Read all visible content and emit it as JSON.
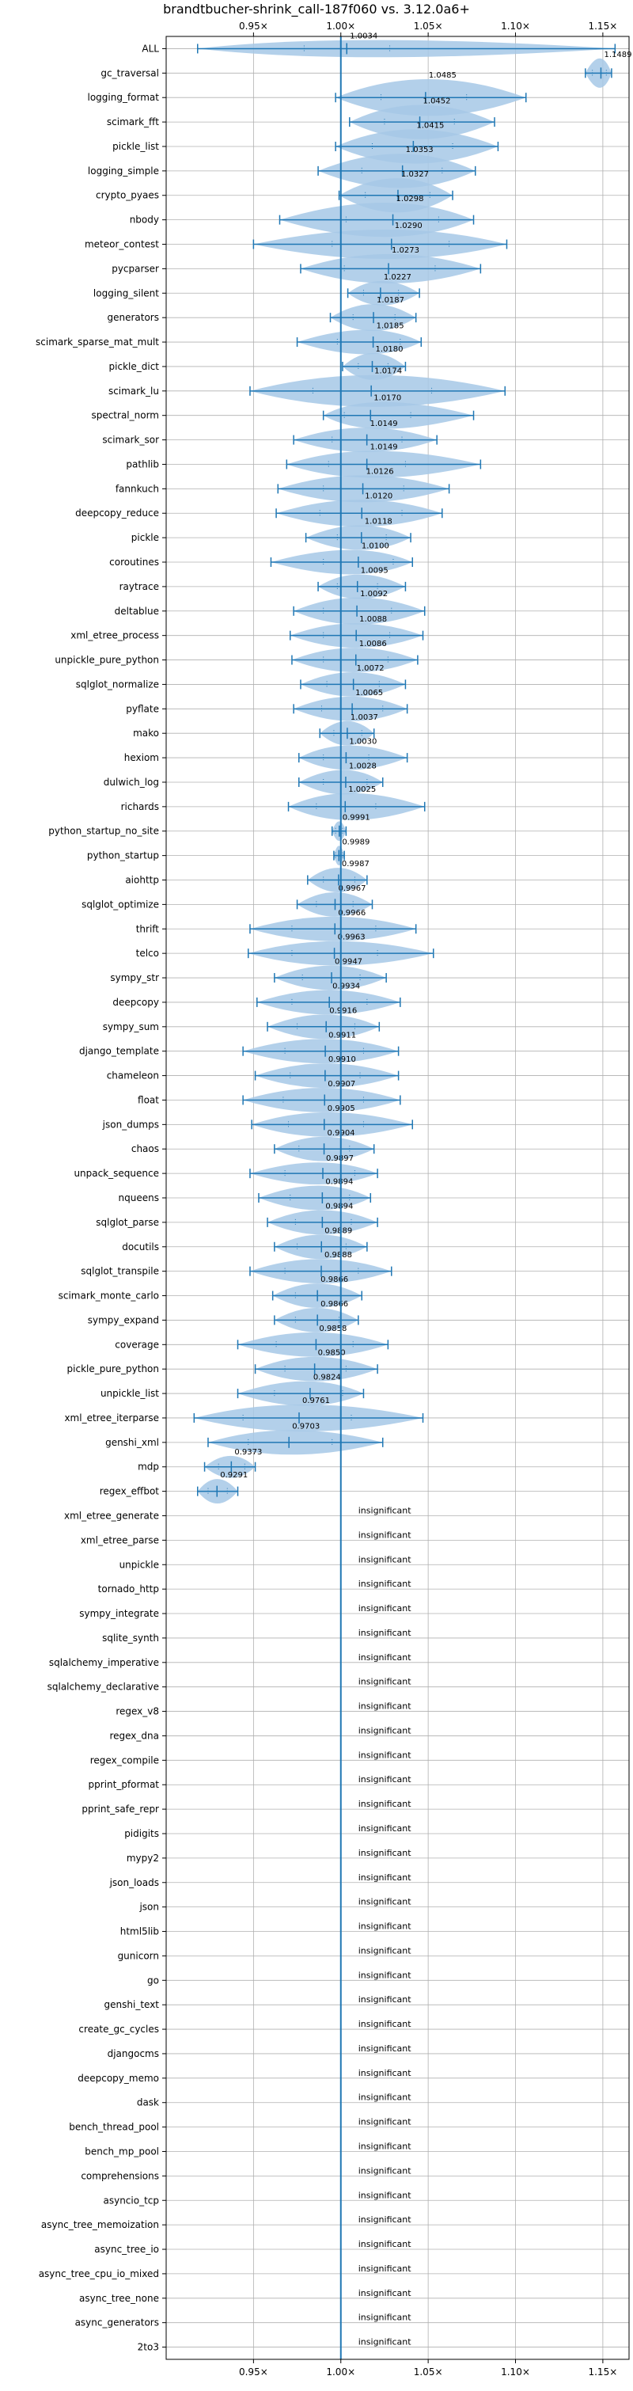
{
  "chart_data": {
    "type": "violin",
    "title": "brandtbucher-shrink_call-187f060 vs. 3.12.0a6+",
    "orientation": "horizontal",
    "xlim": [
      0.9,
      1.165
    ],
    "xticks": [
      0.95,
      1.0,
      1.05,
      1.1,
      1.15
    ],
    "xtick_labels": [
      "0.95×",
      "1.00×",
      "1.05×",
      "1.10×",
      "1.15×"
    ],
    "xticks_top_and_bottom": true,
    "grid": true,
    "reference_line": 1.0,
    "colors": {
      "violin": "#a6c8e6",
      "line": "#1f77b4",
      "grid": "#b0b0b0",
      "axis": "#000000"
    },
    "insignificant_label": "insignificant",
    "benchmarks": [
      {
        "name": "ALL",
        "mean": 1.0034,
        "min": 0.918,
        "max": 1.157,
        "q1": 0.979,
        "q3": 1.028,
        "w": 0.35
      },
      {
        "name": "gc_traversal",
        "mean": 1.1489,
        "min": 1.14,
        "max": 1.155,
        "q1": 1.144,
        "q3": 1.152,
        "w": 0.6
      },
      {
        "name": "logging_format",
        "mean": 1.0485,
        "min": 0.997,
        "max": 1.106,
        "q1": 1.023,
        "q3": 1.072,
        "w": 0.75
      },
      {
        "name": "scimark_fft",
        "mean": 1.0452,
        "min": 1.005,
        "max": 1.088,
        "q1": 1.025,
        "q3": 1.065,
        "w": 0.7
      },
      {
        "name": "pickle_list",
        "mean": 1.0415,
        "min": 0.997,
        "max": 1.09,
        "q1": 1.018,
        "q3": 1.064,
        "w": 0.7
      },
      {
        "name": "logging_simple",
        "mean": 1.0353,
        "min": 0.987,
        "max": 1.077,
        "q1": 1.012,
        "q3": 1.058,
        "w": 0.7
      },
      {
        "name": "crypto_pyaes",
        "mean": 1.0327,
        "min": 0.999,
        "max": 1.064,
        "q1": 1.014,
        "q3": 1.051,
        "w": 0.7
      },
      {
        "name": "nbody",
        "mean": 1.0298,
        "min": 0.965,
        "max": 1.076,
        "q1": 1.003,
        "q3": 1.056,
        "w": 0.7
      },
      {
        "name": "meteor_contest",
        "mean": 1.029,
        "min": 0.95,
        "max": 1.095,
        "q1": 0.995,
        "q3": 1.062,
        "w": 0.6
      },
      {
        "name": "pycparser",
        "mean": 1.0273,
        "min": 0.977,
        "max": 1.08,
        "q1": 1.002,
        "q3": 1.054,
        "w": 0.6
      },
      {
        "name": "logging_silent",
        "mean": 1.0227,
        "min": 1.004,
        "max": 1.045,
        "q1": 1.013,
        "q3": 1.033,
        "w": 0.5
      },
      {
        "name": "generators",
        "mean": 1.0187,
        "min": 0.994,
        "max": 1.043,
        "q1": 1.007,
        "q3": 1.031,
        "w": 0.55
      },
      {
        "name": "scimark_sparse_mat_mult",
        "mean": 1.0185,
        "min": 0.975,
        "max": 1.046,
        "q1": 0.998,
        "q3": 1.034,
        "w": 0.5
      },
      {
        "name": "pickle_dict",
        "mean": 1.018,
        "min": 1.001,
        "max": 1.037,
        "q1": 1.01,
        "q3": 1.027,
        "w": 0.55
      },
      {
        "name": "scimark_lu",
        "mean": 1.0174,
        "min": 0.948,
        "max": 1.094,
        "q1": 0.984,
        "q3": 1.052,
        "w": 0.65
      },
      {
        "name": "spectral_norm",
        "mean": 1.017,
        "min": 0.99,
        "max": 1.076,
        "q1": 1.002,
        "q3": 1.04,
        "w": 0.55
      },
      {
        "name": "scimark_sor",
        "mean": 1.0149,
        "min": 0.973,
        "max": 1.055,
        "q1": 0.995,
        "q3": 1.035,
        "w": 0.5
      },
      {
        "name": "pathlib",
        "mean": 1.0149,
        "min": 0.969,
        "max": 1.08,
        "q1": 0.993,
        "q3": 1.037,
        "w": 0.55
      },
      {
        "name": "fannkuch",
        "mean": 1.0126,
        "min": 0.964,
        "max": 1.062,
        "q1": 0.99,
        "q3": 1.036,
        "w": 0.55
      },
      {
        "name": "deepcopy_reduce",
        "mean": 1.012,
        "min": 0.963,
        "max": 1.058,
        "q1": 0.988,
        "q3": 1.035,
        "w": 0.55
      },
      {
        "name": "pickle",
        "mean": 1.0118,
        "min": 0.98,
        "max": 1.04,
        "q1": 0.998,
        "q3": 1.026,
        "w": 0.5
      },
      {
        "name": "coroutines",
        "mean": 1.01,
        "min": 0.96,
        "max": 1.041,
        "q1": 0.99,
        "q3": 1.03,
        "w": 0.5
      },
      {
        "name": "raytrace",
        "mean": 1.0095,
        "min": 0.987,
        "max": 1.037,
        "q1": 0.998,
        "q3": 1.021,
        "w": 0.5
      },
      {
        "name": "deltablue",
        "mean": 1.0092,
        "min": 0.973,
        "max": 1.048,
        "q1": 0.99,
        "q3": 1.029,
        "w": 0.55
      },
      {
        "name": "xml_etree_process",
        "mean": 1.0088,
        "min": 0.971,
        "max": 1.047,
        "q1": 0.99,
        "q3": 1.028,
        "w": 0.5
      },
      {
        "name": "unpickle_pure_python",
        "mean": 1.0086,
        "min": 0.972,
        "max": 1.044,
        "q1": 0.99,
        "q3": 1.027,
        "w": 0.5
      },
      {
        "name": "sqlglot_normalize",
        "mean": 1.0072,
        "min": 0.977,
        "max": 1.037,
        "q1": 0.992,
        "q3": 1.022,
        "w": 0.5
      },
      {
        "name": "pyflate",
        "mean": 1.0065,
        "min": 0.973,
        "max": 1.038,
        "q1": 0.989,
        "q3": 1.024,
        "w": 0.5
      },
      {
        "name": "mako",
        "mean": 1.0037,
        "min": 0.988,
        "max": 1.019,
        "q1": 0.996,
        "q3": 1.012,
        "w": 0.5
      },
      {
        "name": "hexiom",
        "mean": 1.003,
        "min": 0.976,
        "max": 1.038,
        "q1": 0.99,
        "q3": 1.016,
        "w": 0.5
      },
      {
        "name": "dulwich_log",
        "mean": 1.0028,
        "min": 0.976,
        "max": 1.024,
        "q1": 0.99,
        "q3": 1.015,
        "w": 0.5
      },
      {
        "name": "richards",
        "mean": 1.0025,
        "min": 0.97,
        "max": 1.048,
        "q1": 0.986,
        "q3": 1.02,
        "w": 0.55
      },
      {
        "name": "python_startup_no_site",
        "mean": 0.9991,
        "min": 0.995,
        "max": 1.003,
        "q1": 0.997,
        "q3": 1.001,
        "w": 0.4
      },
      {
        "name": "python_startup",
        "mean": 0.9989,
        "min": 0.996,
        "max": 1.002,
        "q1": 0.997,
        "q3": 1.001,
        "w": 0.4
      },
      {
        "name": "aiohttp",
        "mean": 0.9987,
        "min": 0.981,
        "max": 1.015,
        "q1": 0.99,
        "q3": 1.008,
        "w": 0.5
      },
      {
        "name": "sqlglot_optimize",
        "mean": 0.9967,
        "min": 0.975,
        "max": 1.018,
        "q1": 0.986,
        "q3": 1.007,
        "w": 0.5
      },
      {
        "name": "thrift",
        "mean": 0.9966,
        "min": 0.948,
        "max": 1.043,
        "q1": 0.972,
        "q3": 1.02,
        "w": 0.5
      },
      {
        "name": "telco",
        "mean": 0.9963,
        "min": 0.947,
        "max": 1.053,
        "q1": 0.972,
        "q3": 1.021,
        "w": 0.5
      },
      {
        "name": "sympy_str",
        "mean": 0.9947,
        "min": 0.962,
        "max": 1.026,
        "q1": 0.978,
        "q3": 1.011,
        "w": 0.5
      },
      {
        "name": "deepcopy",
        "mean": 0.9934,
        "min": 0.952,
        "max": 1.034,
        "q1": 0.972,
        "q3": 1.015,
        "w": 0.5
      },
      {
        "name": "sympy_sum",
        "mean": 0.9916,
        "min": 0.958,
        "max": 1.022,
        "q1": 0.975,
        "q3": 1.008,
        "w": 0.5
      },
      {
        "name": "django_template",
        "mean": 0.9911,
        "min": 0.944,
        "max": 1.033,
        "q1": 0.968,
        "q3": 1.013,
        "w": 0.5
      },
      {
        "name": "chameleon",
        "mean": 0.991,
        "min": 0.951,
        "max": 1.033,
        "q1": 0.971,
        "q3": 1.011,
        "w": 0.5
      },
      {
        "name": "float",
        "mean": 0.9907,
        "min": 0.944,
        "max": 1.034,
        "q1": 0.967,
        "q3": 1.013,
        "w": 0.5
      },
      {
        "name": "json_dumps",
        "mean": 0.9905,
        "min": 0.949,
        "max": 1.041,
        "q1": 0.97,
        "q3": 1.013,
        "w": 0.5
      },
      {
        "name": "chaos",
        "mean": 0.9904,
        "min": 0.962,
        "max": 1.019,
        "q1": 0.976,
        "q3": 1.005,
        "w": 0.5
      },
      {
        "name": "unpack_sequence",
        "mean": 0.9897,
        "min": 0.948,
        "max": 1.021,
        "q1": 0.968,
        "q3": 1.008,
        "w": 0.45
      },
      {
        "name": "nqueens",
        "mean": 0.9894,
        "min": 0.953,
        "max": 1.017,
        "q1": 0.971,
        "q3": 1.005,
        "w": 0.5
      },
      {
        "name": "sqlglot_parse",
        "mean": 0.9894,
        "min": 0.958,
        "max": 1.021,
        "q1": 0.974,
        "q3": 1.006,
        "w": 0.5
      },
      {
        "name": "docutils",
        "mean": 0.9889,
        "min": 0.962,
        "max": 1.015,
        "q1": 0.975,
        "q3": 1.003,
        "w": 0.5
      },
      {
        "name": "sqlglot_transpile",
        "mean": 0.9888,
        "min": 0.948,
        "max": 1.029,
        "q1": 0.968,
        "q3": 1.01,
        "w": 0.5
      },
      {
        "name": "scimark_monte_carlo",
        "mean": 0.9866,
        "min": 0.961,
        "max": 1.012,
        "q1": 0.974,
        "q3": 1.0,
        "w": 0.5
      },
      {
        "name": "sympy_expand",
        "mean": 0.9866,
        "min": 0.962,
        "max": 1.01,
        "q1": 0.974,
        "q3": 0.999,
        "w": 0.5
      },
      {
        "name": "coverage",
        "mean": 0.9858,
        "min": 0.941,
        "max": 1.027,
        "q1": 0.963,
        "q3": 1.007,
        "w": 0.5
      },
      {
        "name": "pickle_pure_python",
        "mean": 0.985,
        "min": 0.951,
        "max": 1.021,
        "q1": 0.968,
        "q3": 1.003,
        "w": 0.5
      },
      {
        "name": "unpickle_list",
        "mean": 0.9824,
        "min": 0.941,
        "max": 1.013,
        "q1": 0.962,
        "q3": 1.001,
        "w": 0.5
      },
      {
        "name": "xml_etree_iterparse",
        "mean": 0.9761,
        "min": 0.916,
        "max": 1.047,
        "q1": 0.944,
        "q3": 1.006,
        "w": 0.55
      },
      {
        "name": "genshi_xml",
        "mean": 0.9703,
        "min": 0.924,
        "max": 1.024,
        "q1": 0.947,
        "q3": 0.995,
        "w": 0.5
      },
      {
        "name": "mdp",
        "mean": 0.9373,
        "min": 0.922,
        "max": 0.951,
        "q1": 0.93,
        "q3": 0.945,
        "w": 0.45
      },
      {
        "name": "regex_effbot",
        "mean": 0.9291,
        "min": 0.918,
        "max": 0.941,
        "q1": 0.924,
        "q3": 0.935,
        "w": 0.5
      },
      {
        "name": "xml_etree_generate",
        "insignificant": true
      },
      {
        "name": "xml_etree_parse",
        "insignificant": true
      },
      {
        "name": "unpickle",
        "insignificant": true
      },
      {
        "name": "tornado_http",
        "insignificant": true
      },
      {
        "name": "sympy_integrate",
        "insignificant": true
      },
      {
        "name": "sqlite_synth",
        "insignificant": true
      },
      {
        "name": "sqlalchemy_imperative",
        "insignificant": true
      },
      {
        "name": "sqlalchemy_declarative",
        "insignificant": true
      },
      {
        "name": "regex_v8",
        "insignificant": true
      },
      {
        "name": "regex_dna",
        "insignificant": true
      },
      {
        "name": "regex_compile",
        "insignificant": true
      },
      {
        "name": "pprint_pformat",
        "insignificant": true
      },
      {
        "name": "pprint_safe_repr",
        "insignificant": true
      },
      {
        "name": "pidigits",
        "insignificant": true
      },
      {
        "name": "mypy2",
        "insignificant": true
      },
      {
        "name": "json_loads",
        "insignificant": true
      },
      {
        "name": "json",
        "insignificant": true
      },
      {
        "name": "html5lib",
        "insignificant": true
      },
      {
        "name": "gunicorn",
        "insignificant": true
      },
      {
        "name": "go",
        "insignificant": true
      },
      {
        "name": "genshi_text",
        "insignificant": true
      },
      {
        "name": "create_gc_cycles",
        "insignificant": true
      },
      {
        "name": "djangocms",
        "insignificant": true
      },
      {
        "name": "deepcopy_memo",
        "insignificant": true
      },
      {
        "name": "dask",
        "insignificant": true
      },
      {
        "name": "bench_thread_pool",
        "insignificant": true
      },
      {
        "name": "bench_mp_pool",
        "insignificant": true
      },
      {
        "name": "comprehensions",
        "insignificant": true
      },
      {
        "name": "asyncio_tcp",
        "insignificant": true
      },
      {
        "name": "async_tree_memoization",
        "insignificant": true
      },
      {
        "name": "async_tree_io",
        "insignificant": true
      },
      {
        "name": "async_tree_cpu_io_mixed",
        "insignificant": true
      },
      {
        "name": "async_tree_none",
        "insignificant": true
      },
      {
        "name": "async_generators",
        "insignificant": true
      },
      {
        "name": "2to3",
        "insignificant": true
      }
    ]
  }
}
